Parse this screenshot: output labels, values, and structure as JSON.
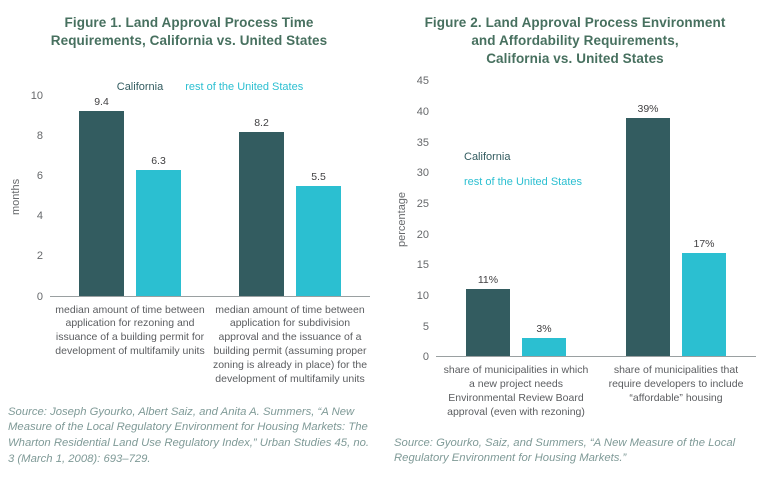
{
  "colors": {
    "california_series": "#335c60",
    "rest_of_us_series": "#2bbfd1",
    "figure_title": "#47705f",
    "axis_text": "#66686b",
    "category_text": "#5b5d60",
    "value_label_text": "#414042",
    "source_text": "#7f9a97",
    "axis_line": "#9aa0a1",
    "background": "#ffffff"
  },
  "chart_data": [
    {
      "type": "bar",
      "title": "Figure 1. Land Approval Process Time\nRequirements, California vs. United States",
      "ylabel": "months",
      "ylim": [
        0,
        10
      ],
      "ytick_labels": [
        "10",
        "8",
        "6",
        "4",
        "2",
        "0"
      ],
      "grid": false,
      "legend_position": "top-center",
      "categories": [
        "median amount of time between application for rezoning and issuance of a building permit for development of multifamily units",
        "median amount of time between application for subdivision approval and the issuance of a building permit (assuming proper zoning is already in place) for the development of multifamily units"
      ],
      "series": [
        {
          "name": "California",
          "color": "#335c60",
          "values": [
            9.4,
            8.2
          ],
          "value_labels": [
            "9.4",
            "8.2"
          ]
        },
        {
          "name": "rest of the United States",
          "color": "#2bbfd1",
          "values": [
            6.3,
            5.5
          ],
          "value_labels": [
            "6.3",
            "5.5"
          ]
        }
      ],
      "source": "Source: Joseph Gyourko, Albert Saiz, and Anita A. Summers, “A New Measure of the Local Regulatory Environment for Housing Markets: The Wharton Residential Land Use Regulatory Index,” Urban Studies 45, no. 3 (March 1, 2008): 693–729."
    },
    {
      "type": "bar",
      "title": "Figure 2. Land Approval Process Environment\nand Affordability Requirements,\nCalifornia vs. United States",
      "ylabel": "percentage",
      "ylim": [
        0,
        45
      ],
      "ytick_labels": [
        "45",
        "40",
        "35",
        "30",
        "25",
        "20",
        "15",
        "10",
        "5",
        "0"
      ],
      "grid": false,
      "legend_position": "upper-left-stacked",
      "categories": [
        "share of municipalities in which a new project needs Environmental Review Board approval (even with rezoning)",
        "share of municipalities that require developers to include “affordable” housing"
      ],
      "series": [
        {
          "name": "California",
          "color": "#335c60",
          "values": [
            11,
            39
          ],
          "value_labels": [
            "11%",
            "39%"
          ]
        },
        {
          "name": "rest of the United States",
          "color": "#2bbfd1",
          "values": [
            3,
            17
          ],
          "value_labels": [
            "3%",
            "17%"
          ]
        }
      ],
      "source": "Source: Gyourko, Saiz, and Summers, “A New Measure of the Local Regulatory Environment for Housing Markets.”"
    }
  ]
}
